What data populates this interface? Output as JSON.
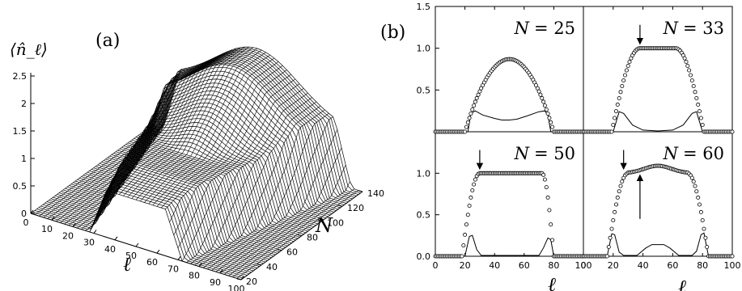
{
  "chart_data": [
    {
      "type": "surface3d",
      "panel_label": "(a)",
      "zlabel": "⟨n̂_ℓ⟩",
      "xlabel": "ℓ",
      "ylabel": "N",
      "z_ticks": [
        "0",
        "0.5",
        "1",
        "1.5",
        "2",
        "2.5"
      ],
      "x_ticks": [
        "0",
        "10",
        "20",
        "30",
        "40",
        "50",
        "60",
        "70",
        "80",
        "90",
        "100"
      ],
      "y_ticks": [
        "20",
        "40",
        "60",
        "80",
        "100",
        "120",
        "140"
      ],
      "x_range": [
        0,
        100
      ],
      "y_range": [
        20,
        140
      ],
      "z_range": [
        0,
        2.5
      ],
      "mesh_color": "#000000"
    },
    {
      "type": "line",
      "panel_label": "(b)",
      "xlabel": "ℓ",
      "xlim": [
        0,
        100
      ],
      "x_ticks": [
        "0",
        "20",
        "40",
        "60",
        "80",
        "100"
      ],
      "top_y_ticks": [
        "1.5",
        "1.0",
        "0.5"
      ],
      "bottom_y_ticks": [
        "1.0",
        "0.5",
        "0.0"
      ],
      "panels": [
        {
          "name": "N = 25",
          "label_lhs": "N",
          "label_rhs": "= 25",
          "ylim": [
            0,
            1.5
          ],
          "circles": {
            "plateau": 0.87,
            "edges": [
              20,
              80
            ],
            "shape": "dome",
            "center": 50
          },
          "line": [
            [
              0,
              0
            ],
            [
              22,
              0
            ],
            [
              24,
              0.22
            ],
            [
              27,
              0.25
            ],
            [
              32,
              0.2
            ],
            [
              40,
              0.16
            ],
            [
              45,
              0.14
            ],
            [
              50,
              0.14
            ],
            [
              55,
              0.15
            ],
            [
              62,
              0.19
            ],
            [
              70,
              0.24
            ],
            [
              74,
              0.25
            ],
            [
              76,
              0.2
            ],
            [
              78,
              0
            ],
            [
              100,
              0
            ]
          ],
          "arrows": []
        },
        {
          "name": "N = 33",
          "label_lhs": "N",
          "label_rhs": "= 33",
          "ylim": [
            0,
            1.5
          ],
          "circles": {
            "plateau": 1.0,
            "edges": [
              19,
              81
            ],
            "flat": [
              38,
              62
            ]
          },
          "line": [
            [
              0,
              0
            ],
            [
              20,
              0
            ],
            [
              24,
              0.24
            ],
            [
              27,
              0.22
            ],
            [
              33,
              0.08
            ],
            [
              40,
              0.02
            ],
            [
              50,
              0.01
            ],
            [
              60,
              0.02
            ],
            [
              67,
              0.08
            ],
            [
              73,
              0.22
            ],
            [
              76,
              0.24
            ],
            [
              80,
              0
            ],
            [
              100,
              0
            ]
          ],
          "arrows": [
            {
              "x": 38,
              "y_from": 1.28,
              "y_to": 1.05,
              "direction": "down"
            }
          ]
        },
        {
          "name": "N = 50",
          "label_lhs": "N",
          "label_rhs": "= 50",
          "ylim": [
            0,
            1.5
          ],
          "circles": {
            "plateau": 1.0,
            "edges": [
              18,
              80
            ],
            "flat": [
              30,
              72
            ]
          },
          "line": [
            [
              0,
              0
            ],
            [
              20,
              0
            ],
            [
              23,
              0.24
            ],
            [
              25,
              0.25
            ],
            [
              28,
              0.08
            ],
            [
              31,
              0.01
            ],
            [
              70,
              0.01
            ],
            [
              73,
              0.1
            ],
            [
              76,
              0.22
            ],
            [
              78,
              0.2
            ],
            [
              80,
              0
            ],
            [
              100,
              0
            ]
          ],
          "arrows": [
            {
              "x": 30,
              "y_from": 1.28,
              "y_to": 1.05,
              "direction": "down"
            }
          ]
        },
        {
          "name": "N = 60",
          "label_lhs": "N",
          "label_rhs": "= 60",
          "ylim": [
            0,
            1.5
          ],
          "circles": {
            "plateau": 1.0,
            "edges": [
              16,
              84
            ],
            "flat": [
              30,
              70
            ],
            "bump": {
              "center": 50,
              "width": 14,
              "height": 0.09
            }
          },
          "line": [
            [
              0,
              0
            ],
            [
              16,
              0
            ],
            [
              19,
              0.27
            ],
            [
              21,
              0.26
            ],
            [
              24,
              0.05
            ],
            [
              27,
              0.01
            ],
            [
              36,
              0.01
            ],
            [
              42,
              0.1
            ],
            [
              46,
              0.14
            ],
            [
              54,
              0.14
            ],
            [
              58,
              0.1
            ],
            [
              64,
              0.01
            ],
            [
              73,
              0.01
            ],
            [
              76,
              0.06
            ],
            [
              79,
              0.26
            ],
            [
              81,
              0.28
            ],
            [
              84,
              0
            ],
            [
              100,
              0
            ]
          ],
          "arrows": [
            {
              "x": 27,
              "y_from": 1.28,
              "y_to": 1.05,
              "direction": "down"
            },
            {
              "x": 38,
              "y_from": 0.45,
              "y_to": 0.98,
              "direction": "up"
            }
          ]
        }
      ]
    }
  ]
}
